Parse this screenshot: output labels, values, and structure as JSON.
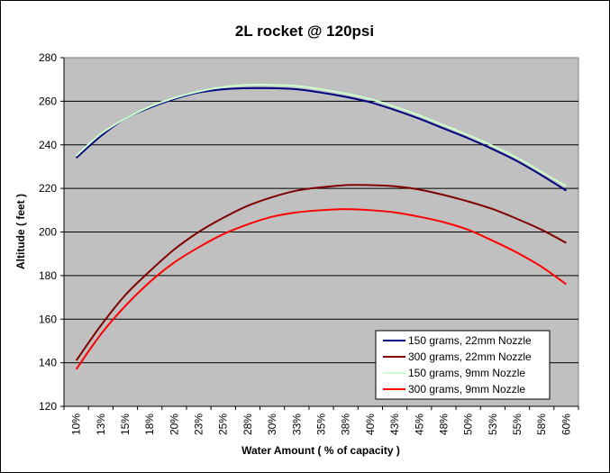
{
  "chart_data": {
    "type": "line",
    "title": "2L rocket @ 120psi",
    "xlabel": "Water Amount ( % of capacity )",
    "ylabel": "Altitude ( feet )",
    "ylim": [
      120,
      280
    ],
    "yticks": [
      120,
      140,
      160,
      180,
      200,
      220,
      240,
      260,
      280
    ],
    "grid": "horizontal",
    "legend_position": "bottom-right",
    "plot_background": "#c0c0c0",
    "categories": [
      "10%",
      "13%",
      "15%",
      "18%",
      "20%",
      "23%",
      "25%",
      "28%",
      "30%",
      "33%",
      "35%",
      "38%",
      "40%",
      "43%",
      "45%",
      "48%",
      "50%",
      "53%",
      "55%",
      "58%",
      "60%"
    ],
    "series": [
      {
        "name": "150 grams, 22mm Nozzle",
        "color": "#000080",
        "values": [
          234,
          244,
          252,
          257,
          261,
          264,
          265.5,
          266,
          266,
          265.5,
          264,
          262,
          259.5,
          256,
          252,
          247.5,
          243,
          238,
          232.5,
          226,
          219
        ]
      },
      {
        "name": "300 grams, 22mm Nozzle",
        "color": "#800000",
        "values": [
          141,
          157,
          171,
          182,
          192,
          200,
          206.5,
          212,
          216,
          219,
          220.5,
          221.5,
          221.5,
          221,
          219.5,
          217,
          214,
          210.5,
          206,
          201,
          195
        ]
      },
      {
        "name": "150 grams, 9mm Nozzle",
        "color": "#ccffcc",
        "values": [
          235,
          245,
          252,
          257.5,
          261.5,
          264.5,
          266.5,
          267.5,
          267.5,
          267,
          265.5,
          263.5,
          261,
          257.5,
          253.5,
          249,
          244.5,
          239.5,
          234,
          227.5,
          221
        ]
      },
      {
        "name": "300 grams, 9mm Nozzle",
        "color": "#ff0000",
        "values": [
          137,
          153,
          166,
          177,
          186,
          193,
          199,
          203.5,
          207,
          209,
          210,
          210.5,
          210,
          209,
          207,
          204.5,
          201,
          196,
          190.5,
          184,
          176
        ]
      }
    ]
  }
}
